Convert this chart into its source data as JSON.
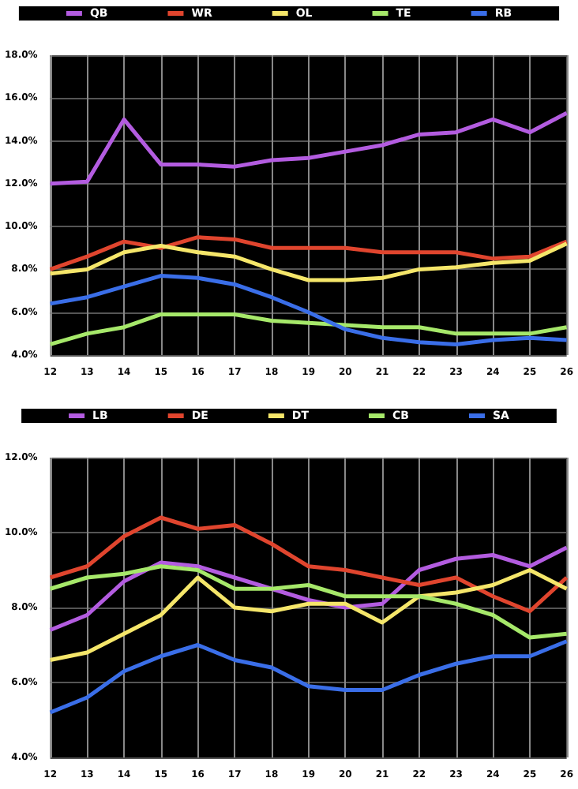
{
  "chart_data": [
    {
      "type": "line",
      "x": [
        12,
        13,
        14,
        15,
        16,
        17,
        18,
        19,
        20,
        21,
        22,
        23,
        24,
        25,
        26
      ],
      "xlim": [
        12,
        26
      ],
      "xticks": [
        12,
        13,
        14,
        15,
        16,
        17,
        18,
        19,
        20,
        21,
        22,
        23,
        24,
        25,
        26
      ],
      "ylim": [
        4,
        18
      ],
      "yticks": [
        {
          "value": 4,
          "label": "4.0%"
        },
        {
          "value": 6,
          "label": "6.0%"
        },
        {
          "value": 8,
          "label": "8.0%"
        },
        {
          "value": 10,
          "label": "10.0%"
        },
        {
          "value": 12,
          "label": "12.0%"
        },
        {
          "value": 14,
          "label": "14.0%"
        },
        {
          "value": 16,
          "label": "16.0%"
        },
        {
          "value": 18,
          "label": "18.0%"
        }
      ],
      "grid": true,
      "legend": "top",
      "marker": "none",
      "series": [
        {
          "name": "QB",
          "color": "#b35ce0",
          "values": [
            12.0,
            12.1,
            15.0,
            12.9,
            12.9,
            12.8,
            13.1,
            13.2,
            13.5,
            13.8,
            14.3,
            14.4,
            15.0,
            14.4,
            15.3
          ]
        },
        {
          "name": "WR",
          "color": "#e0452e",
          "values": [
            8.0,
            8.6,
            9.3,
            9.0,
            9.5,
            9.4,
            9.0,
            9.0,
            9.0,
            8.8,
            8.8,
            8.8,
            8.5,
            8.6,
            9.3
          ]
        },
        {
          "name": "OL",
          "color": "#f5e66a",
          "values": [
            7.8,
            8.0,
            8.8,
            9.1,
            8.8,
            8.6,
            8.0,
            7.5,
            7.5,
            7.6,
            8.0,
            8.1,
            8.3,
            8.4,
            9.2
          ]
        },
        {
          "name": "TE",
          "color": "#a6e86a",
          "values": [
            4.5,
            5.0,
            5.3,
            5.9,
            5.9,
            5.9,
            5.6,
            5.5,
            5.4,
            5.3,
            5.3,
            5.0,
            5.0,
            5.0,
            5.3
          ]
        },
        {
          "name": "RB",
          "color": "#3a6ee8",
          "values": [
            6.4,
            6.7,
            7.2,
            7.7,
            7.6,
            7.3,
            6.7,
            6.0,
            5.2,
            4.8,
            4.6,
            4.5,
            4.7,
            4.8,
            4.7
          ]
        }
      ]
    },
    {
      "type": "line",
      "x": [
        12,
        13,
        14,
        15,
        16,
        17,
        18,
        19,
        20,
        21,
        22,
        23,
        24,
        25,
        26
      ],
      "xlim": [
        12,
        26
      ],
      "xticks": [
        12,
        13,
        14,
        15,
        16,
        17,
        18,
        19,
        20,
        21,
        22,
        23,
        24,
        25,
        26
      ],
      "ylim": [
        4,
        12
      ],
      "yticks": [
        {
          "value": 4,
          "label": "4.0%"
        },
        {
          "value": 6,
          "label": "6.0%"
        },
        {
          "value": 8,
          "label": "8.0%"
        },
        {
          "value": 10,
          "label": "10.0%"
        },
        {
          "value": 12,
          "label": "12.0%"
        }
      ],
      "grid": true,
      "legend": "top",
      "marker": "none",
      "series": [
        {
          "name": "LB",
          "color": "#b35ce0",
          "values": [
            7.4,
            7.8,
            8.7,
            9.2,
            9.1,
            8.8,
            8.5,
            8.2,
            8.0,
            8.1,
            9.0,
            9.3,
            9.4,
            9.1,
            9.6
          ]
        },
        {
          "name": "DE",
          "color": "#e0452e",
          "values": [
            8.8,
            9.1,
            9.9,
            10.4,
            10.1,
            10.2,
            9.7,
            9.1,
            9.0,
            8.8,
            8.6,
            8.8,
            8.3,
            7.9,
            8.8
          ]
        },
        {
          "name": "DT",
          "color": "#f5e66a",
          "values": [
            6.6,
            6.8,
            7.3,
            7.8,
            8.8,
            8.0,
            7.9,
            8.1,
            8.1,
            7.6,
            8.3,
            8.4,
            8.6,
            9.0,
            8.5
          ]
        },
        {
          "name": "CB",
          "color": "#a6e86a",
          "values": [
            8.5,
            8.8,
            8.9,
            9.1,
            9.0,
            8.5,
            8.5,
            8.6,
            8.3,
            8.3,
            8.3,
            8.1,
            7.8,
            7.2,
            7.3
          ]
        },
        {
          "name": "SA",
          "color": "#3a6ee8",
          "values": [
            5.2,
            5.6,
            6.3,
            6.7,
            7.0,
            6.6,
            6.4,
            5.9,
            5.8,
            5.8,
            6.2,
            6.5,
            6.7,
            6.7,
            7.1
          ]
        }
      ]
    }
  ]
}
